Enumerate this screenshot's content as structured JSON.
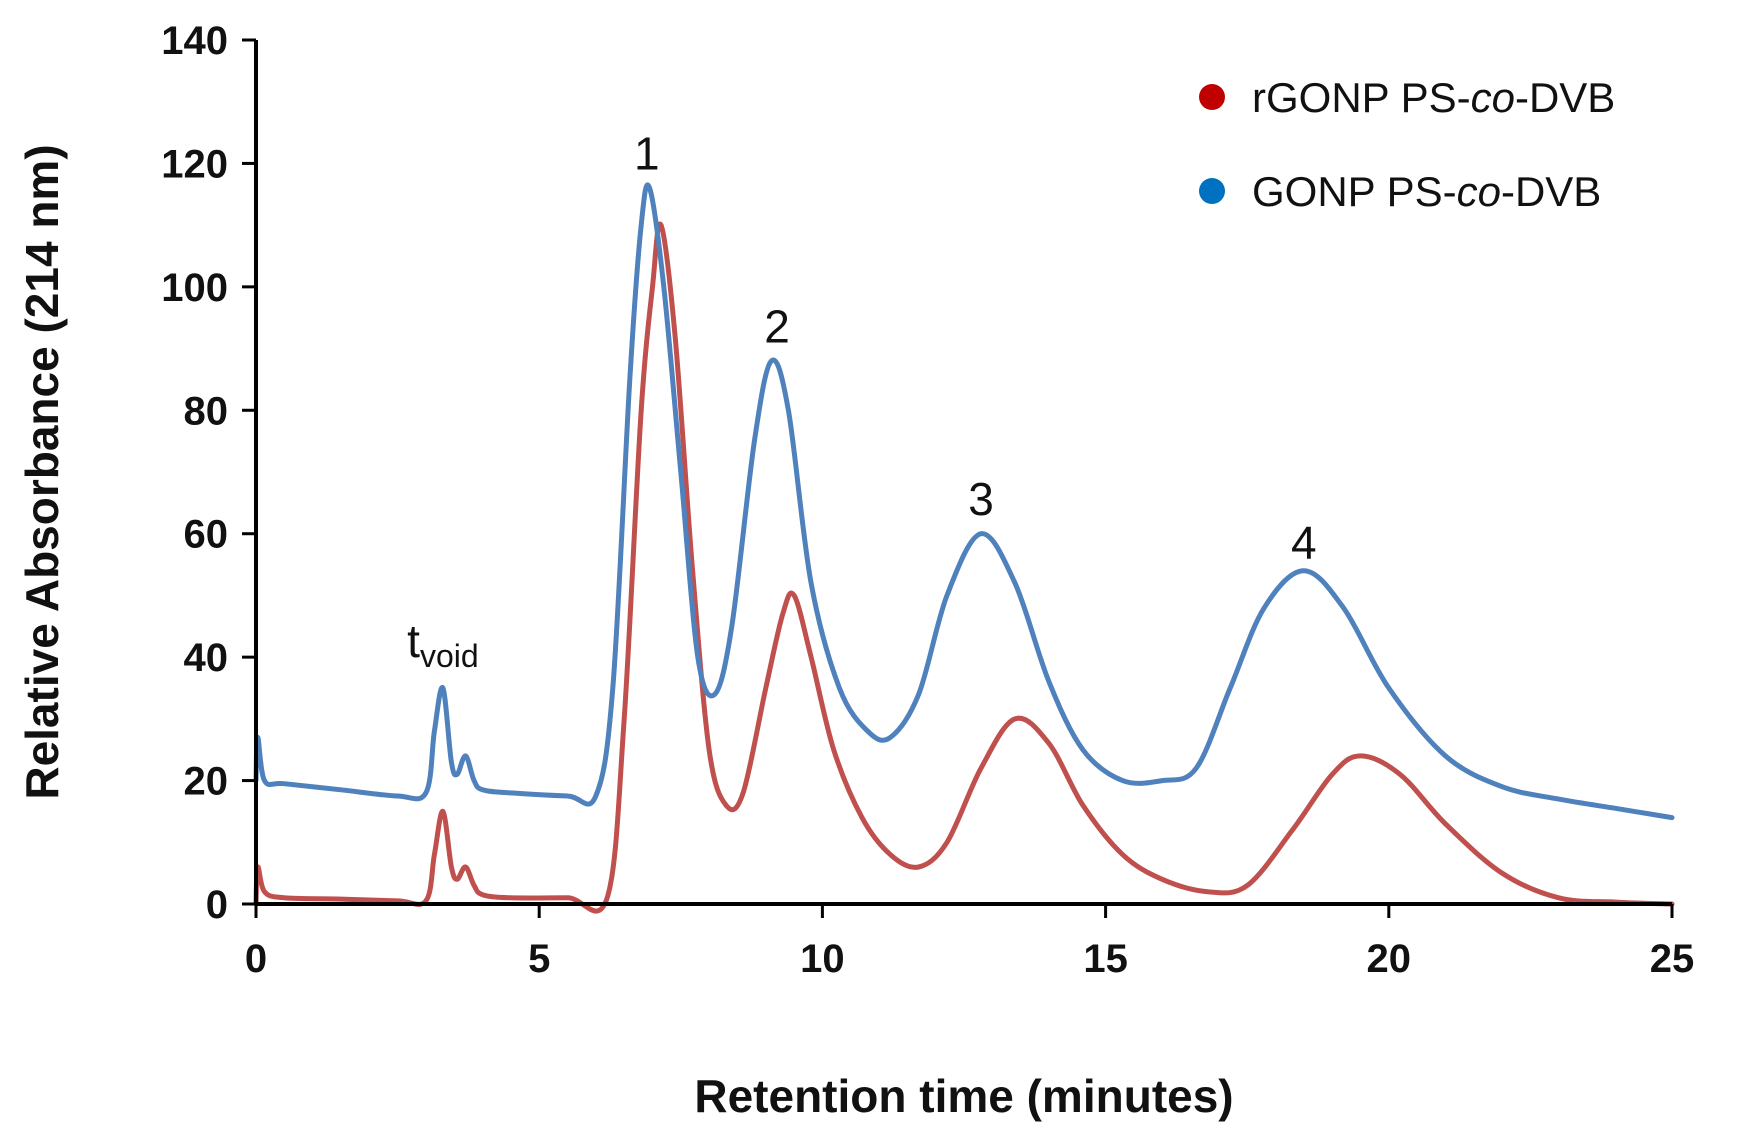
{
  "chart_data": {
    "type": "line",
    "title": "",
    "xlabel": "Retention time (minutes)",
    "ylabel": "Relative Absorbance (214 nm)",
    "xlim": [
      0,
      25
    ],
    "ylim": [
      0,
      140
    ],
    "xticks": [
      0,
      5,
      10,
      15,
      20,
      25
    ],
    "yticks": [
      0,
      20,
      40,
      60,
      80,
      100,
      120,
      140
    ],
    "grid": false,
    "legend_position": "top-right",
    "series": [
      {
        "name": "rGONP PS-co-DVB",
        "name_parts": [
          "rGONP PS-",
          "co",
          "-DVB"
        ],
        "color": "#c0504d",
        "legend_marker_color": "#c00000",
        "x": [
          0,
          0.03,
          0.15,
          0.5,
          1.5,
          2.5,
          3.0,
          3.15,
          3.3,
          3.45,
          3.55,
          3.7,
          3.85,
          4.0,
          4.5,
          5.5,
          6.2,
          6.5,
          6.8,
          7.0,
          7.15,
          7.4,
          7.7,
          8.0,
          8.3,
          8.6,
          9.0,
          9.3,
          9.5,
          9.8,
          10.2,
          10.7,
          11.2,
          11.7,
          12.2,
          12.8,
          13.4,
          14.0,
          14.6,
          15.3,
          16.0,
          16.8,
          17.5,
          18.3,
          19.0,
          19.5,
          20.2,
          21.0,
          22.0,
          23.0,
          24.0,
          25.0
        ],
        "y": [
          0,
          6,
          2,
          1,
          0.8,
          0.5,
          0.5,
          8,
          15,
          6,
          4,
          6,
          3,
          1.5,
          1,
          1,
          1,
          30,
          80,
          100,
          110,
          92,
          55,
          25,
          16,
          18,
          35,
          47,
          50,
          40,
          25,
          14,
          8,
          6,
          10,
          22,
          30,
          26,
          16,
          8,
          4,
          2,
          3,
          12,
          21,
          24,
          21,
          13,
          5,
          1,
          0.3,
          0
        ]
      },
      {
        "name": "GONP PS-co-DVB",
        "name_parts": [
          "GONP PS-",
          "co",
          "-DVB"
        ],
        "color": "#4f81bd",
        "legend_marker_color": "#0070c0",
        "x": [
          0,
          0.03,
          0.15,
          0.5,
          1.5,
          2.5,
          3.0,
          3.15,
          3.3,
          3.45,
          3.55,
          3.7,
          3.85,
          4.0,
          4.5,
          5.5,
          6.0,
          6.3,
          6.6,
          6.8,
          6.95,
          7.2,
          7.5,
          7.8,
          8.1,
          8.4,
          8.8,
          9.1,
          9.4,
          9.8,
          10.3,
          10.8,
          11.2,
          11.7,
          12.2,
          12.8,
          13.4,
          14.0,
          14.6,
          15.3,
          16.0,
          16.6,
          17.2,
          17.8,
          18.5,
          19.2,
          20.0,
          21.0,
          22.0,
          23.0,
          24.0,
          25.0
        ],
        "y": [
          20,
          27,
          20,
          19.5,
          18.5,
          17.5,
          18,
          28,
          35,
          23,
          21,
          24,
          20,
          18.5,
          18,
          17.5,
          17.5,
          35,
          85,
          110,
          116,
          100,
          70,
          40,
          34,
          45,
          75,
          88,
          80,
          52,
          35,
          28,
          27,
          34,
          50,
          60,
          52,
          36,
          25,
          20,
          20,
          22,
          35,
          48,
          54,
          48,
          35,
          24,
          19,
          17,
          15.5,
          14
        ]
      }
    ],
    "annotations": [
      {
        "text": "1",
        "x": 6.9,
        "y": 119
      },
      {
        "text": "2",
        "x": 9.2,
        "y": 91
      },
      {
        "text": "3",
        "x": 12.8,
        "y": 63
      },
      {
        "text": "4",
        "x": 18.5,
        "y": 56
      },
      {
        "text": "t",
        "subscript": "void",
        "x": 3.3,
        "y": 40
      }
    ]
  }
}
